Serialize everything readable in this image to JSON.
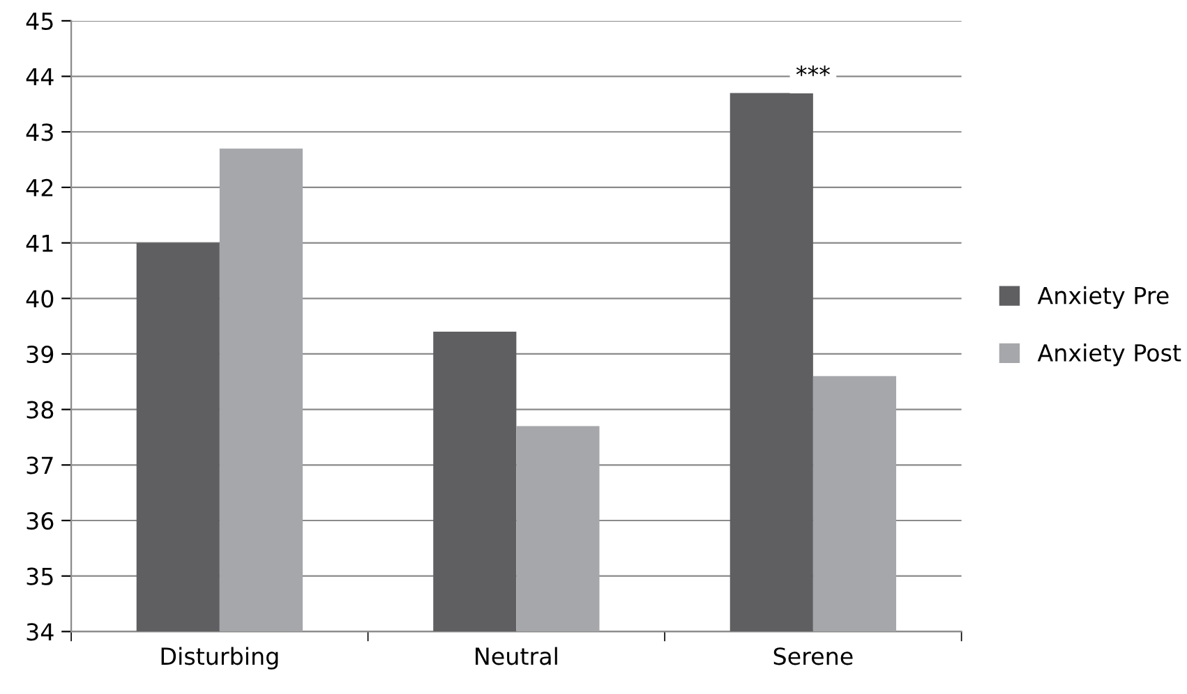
{
  "chart_data": {
    "type": "bar",
    "categories": [
      "Disturbing",
      "Neutral",
      "Serene"
    ],
    "series": [
      {
        "name": "Anxiety Pre",
        "color": "#5f5f61",
        "values": [
          41.0,
          39.4,
          43.7
        ]
      },
      {
        "name": "Anxiety Post",
        "color": "#a6a7aa",
        "values": [
          42.7,
          37.7,
          38.6
        ]
      }
    ],
    "ylim": [
      34,
      45
    ],
    "yticks": [
      34,
      35,
      36,
      37,
      38,
      39,
      40,
      41,
      42,
      43,
      44,
      45
    ],
    "grid": "y",
    "legend": "right",
    "annotations": [
      {
        "text": "***",
        "x": "Serene",
        "y": 44
      }
    ]
  }
}
